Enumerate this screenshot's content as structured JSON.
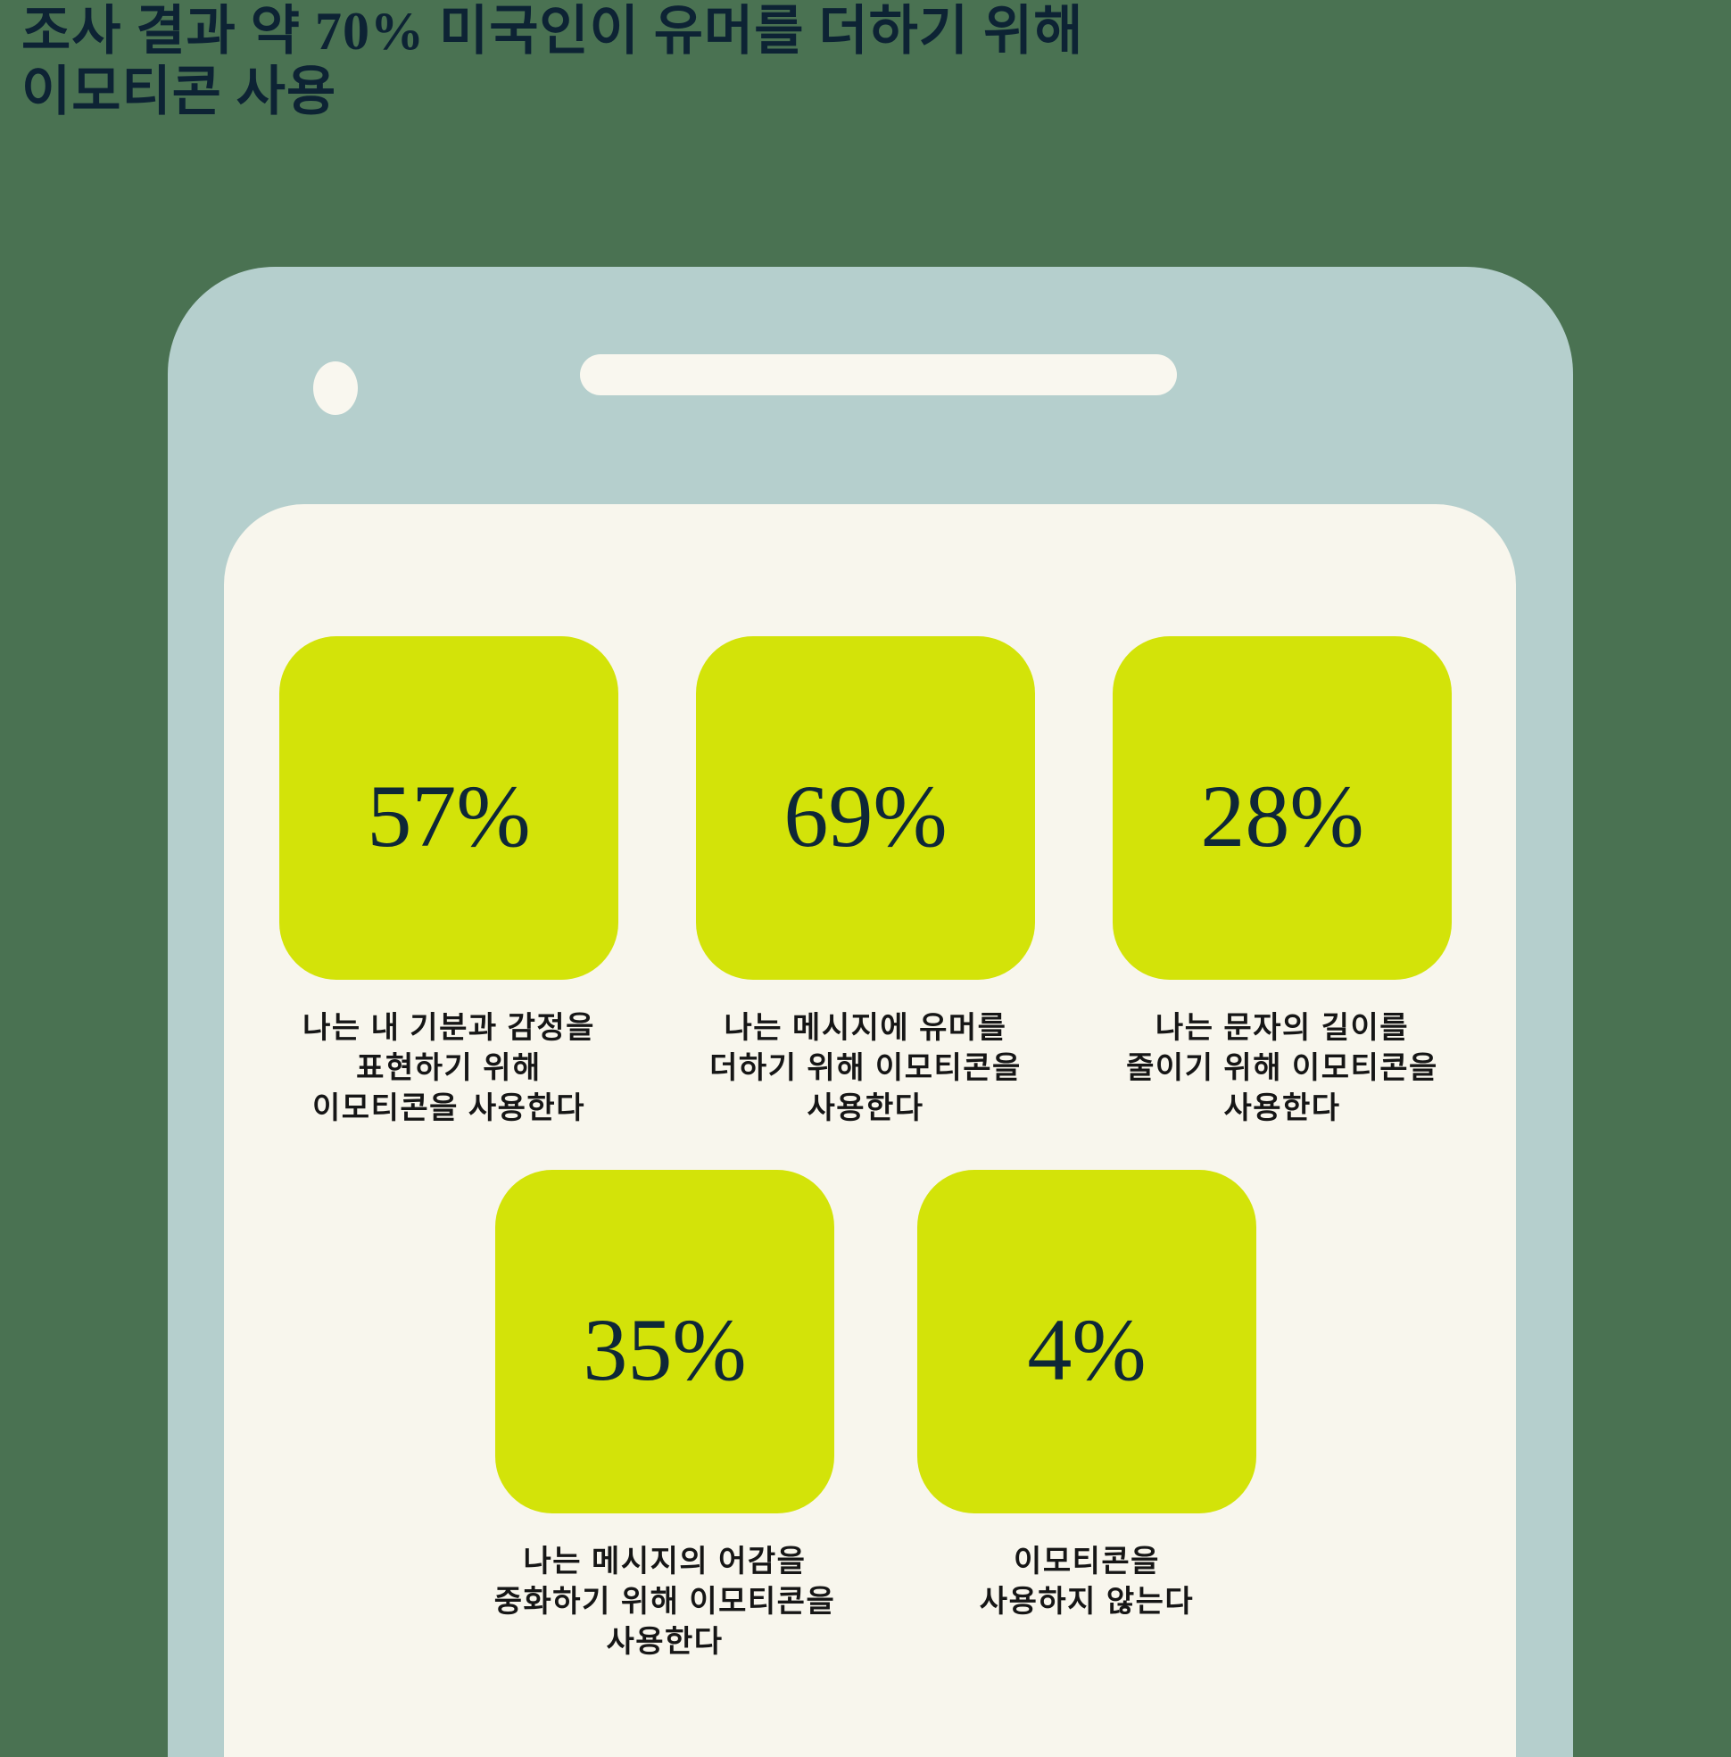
{
  "title": {
    "text": "조사 결과 약 70% 미국인이 유머를 더하기 위해\n이모티콘 사용"
  },
  "colors": {
    "background": "#4a7252",
    "phone_body": "#b5cfcd",
    "screen": "#f8f6ed",
    "tile": "#d3e309",
    "title_text": "#0d2334",
    "value_text": "#0e2737",
    "caption_text": "#161616"
  },
  "icons": {
    "camera": "phone-camera-dot",
    "speaker": "phone-speaker-bar"
  },
  "stats": [
    {
      "value": 57,
      "value_label": "57%",
      "caption": "나는 내 기분과 감정을\n표현하기 위해\n이모티콘을 사용한다"
    },
    {
      "value": 69,
      "value_label": "69%",
      "caption": "나는 메시지에 유머를\n더하기 위해 이모티콘을\n사용한다"
    },
    {
      "value": 28,
      "value_label": "28%",
      "caption": "나는 문자의 길이를\n줄이기 위해 이모티콘을\n사용한다"
    },
    {
      "value": 35,
      "value_label": "35%",
      "caption": "나는 메시지의 어감을\n중화하기 위해 이모티콘을\n사용한다"
    },
    {
      "value": 4,
      "value_label": "4%",
      "caption": "이모티콘을\n사용하지 않는다"
    }
  ],
  "chart_data": {
    "type": "table",
    "title": "조사 결과 약 70% 미국인이 유머를 더하기 위해 이모티콘 사용",
    "categories": [
      "나는 내 기분과 감정을 표현하기 위해 이모티콘을 사용한다",
      "나는 메시지에 유머를 더하기 위해 이모티콘을 사용한다",
      "나는 문자의 길이를 줄이기 위해 이모티콘을 사용한다",
      "나는 메시지의 어감을 중화하기 위해 이모티콘을 사용한다",
      "이모티콘을 사용하지 않는다"
    ],
    "values": [
      57,
      69,
      28,
      35,
      4
    ],
    "unit": "%",
    "legend_position": "none",
    "layout": "5 percentage stat tiles inside a phone mockup: top row of 3 tiles, bottom row of 2 tiles, caption under each tile"
  }
}
